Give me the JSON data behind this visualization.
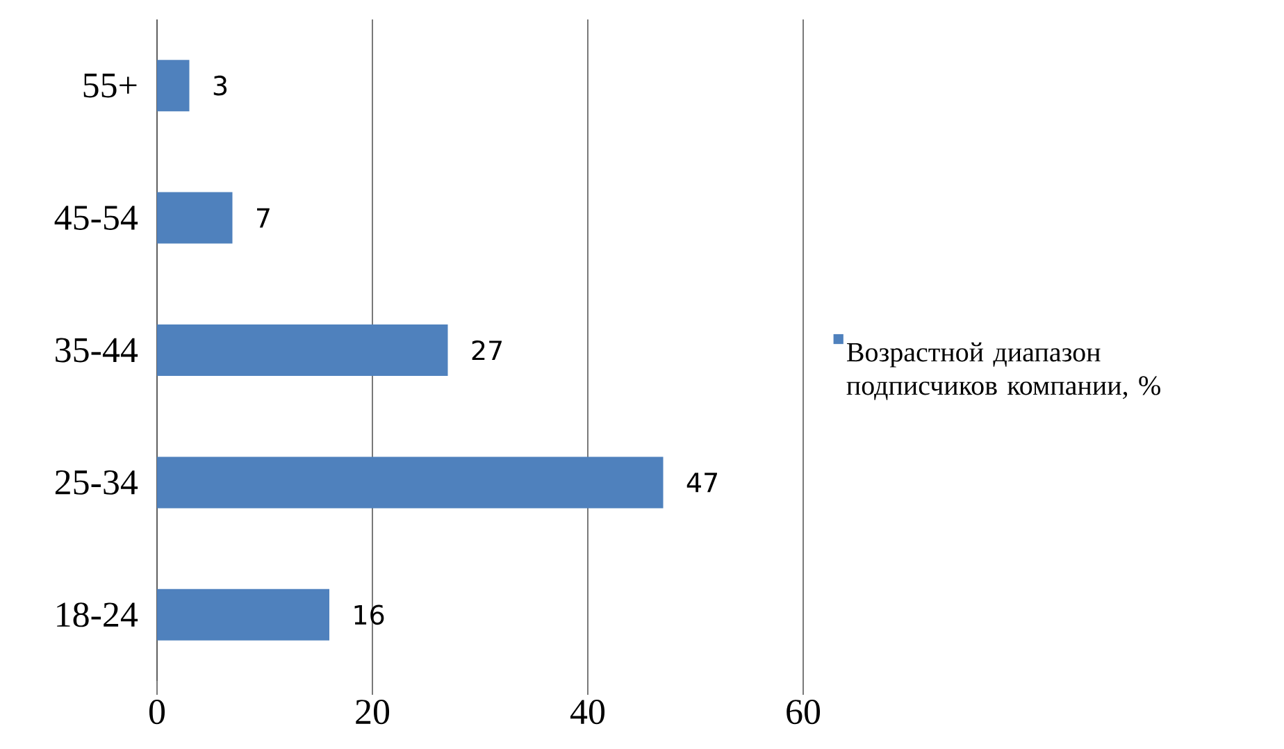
{
  "chart_data": {
    "type": "bar",
    "orientation": "horizontal",
    "categories": [
      "55+",
      "45-54",
      "35-44",
      "25-34",
      "18-24"
    ],
    "series": [
      {
        "name": "Возрастной диапазон подписчиков компании, %",
        "color": "#4f81bd",
        "values": [
          3,
          7,
          27,
          47,
          16
        ]
      }
    ],
    "xlim": [
      0,
      60
    ],
    "xticks": [
      0,
      20,
      40,
      60
    ],
    "grid": "x",
    "legend": "right",
    "data_labels": true
  }
}
